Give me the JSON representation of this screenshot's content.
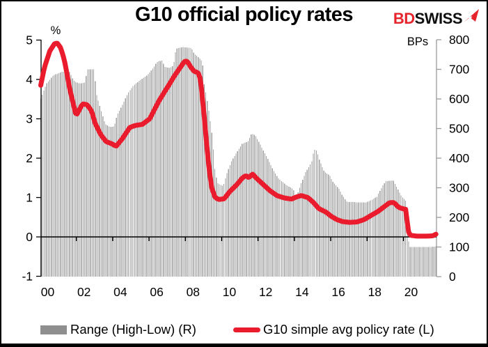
{
  "header": {
    "title": "G10 official policy rates",
    "logo": {
      "bd": "BD",
      "swiss": "SWISS",
      "bd_color": "#e5242b",
      "swiss_color": "#0f0f0f",
      "arrow_color": "#e5242b"
    }
  },
  "legend": {
    "items": [
      {
        "label": "Range (High-Low) (R)",
        "swatch": "bar",
        "color": "#8f8f8f"
      },
      {
        "label": "G10 simple avg policy rate (L)",
        "swatch": "line",
        "color": "#ea1b2c"
      }
    ]
  },
  "chart_data": {
    "type": "combo",
    "title": "G10 official policy rates",
    "x_axis": {
      "start": 2000.0,
      "end": 2021.79,
      "monthly_points": 262,
      "tick_labels": [
        "00",
        "02",
        "04",
        "06",
        "08",
        "10",
        "12",
        "14",
        "16",
        "18",
        "20"
      ],
      "tick_years": [
        2000,
        2002,
        2004,
        2006,
        2008,
        2010,
        2012,
        2014,
        2016,
        2018,
        2020
      ]
    },
    "left_axis": {
      "label": "%",
      "min": -1,
      "max": 5,
      "ticks": [
        5,
        4,
        3,
        2,
        1,
        0,
        -1
      ]
    },
    "right_axis": {
      "label": "BPs",
      "min": 0,
      "max": 800,
      "ticks": [
        800,
        700,
        600,
        500,
        400,
        300,
        200,
        100,
        0
      ]
    },
    "series": [
      {
        "name": "Range (High-Low) (R)",
        "type": "bar",
        "axis": "right",
        "unit": "BPs",
        "color": "#9f9f9f",
        "keypoints": [
          [
            2000.0,
            600
          ],
          [
            2000.3,
            650
          ],
          [
            2000.7,
            680
          ],
          [
            2001.2,
            692
          ],
          [
            2001.6,
            690
          ],
          [
            2001.8,
            662
          ],
          [
            2002.1,
            652
          ],
          [
            2002.45,
            655
          ],
          [
            2002.55,
            700
          ],
          [
            2002.95,
            700
          ],
          [
            2003.05,
            620
          ],
          [
            2003.3,
            565
          ],
          [
            2003.55,
            515
          ],
          [
            2003.8,
            505
          ],
          [
            2004.05,
            508
          ],
          [
            2004.2,
            545
          ],
          [
            2004.5,
            580
          ],
          [
            2004.8,
            620
          ],
          [
            2005.1,
            645
          ],
          [
            2005.5,
            665
          ],
          [
            2005.9,
            682
          ],
          [
            2006.2,
            705
          ],
          [
            2006.4,
            725
          ],
          [
            2006.7,
            730
          ],
          [
            2006.8,
            708
          ],
          [
            2007.1,
            705
          ],
          [
            2007.3,
            712
          ],
          [
            2007.45,
            770
          ],
          [
            2007.8,
            775
          ],
          [
            2008.3,
            772
          ],
          [
            2008.45,
            752
          ],
          [
            2008.7,
            740
          ],
          [
            2008.9,
            725
          ],
          [
            2009.0,
            650
          ],
          [
            2009.15,
            600
          ],
          [
            2009.3,
            540
          ],
          [
            2009.45,
            470
          ],
          [
            2009.6,
            350
          ],
          [
            2009.75,
            315
          ],
          [
            2010.05,
            305
          ],
          [
            2010.25,
            350
          ],
          [
            2010.5,
            390
          ],
          [
            2010.8,
            420
          ],
          [
            2011.1,
            450
          ],
          [
            2011.4,
            455
          ],
          [
            2011.6,
            482
          ],
          [
            2011.8,
            478
          ],
          [
            2012.0,
            455
          ],
          [
            2012.2,
            432
          ],
          [
            2012.5,
            398
          ],
          [
            2012.8,
            360
          ],
          [
            2013.1,
            330
          ],
          [
            2013.5,
            310
          ],
          [
            2013.9,
            295
          ],
          [
            2014.05,
            262
          ],
          [
            2014.3,
            310
          ],
          [
            2014.6,
            355
          ],
          [
            2014.9,
            385
          ],
          [
            2015.05,
            430
          ],
          [
            2015.2,
            424
          ],
          [
            2015.35,
            392
          ],
          [
            2015.6,
            355
          ],
          [
            2015.9,
            342
          ],
          [
            2016.1,
            318
          ],
          [
            2016.4,
            298
          ],
          [
            2016.6,
            275
          ],
          [
            2016.85,
            252
          ],
          [
            2017.9,
            250
          ],
          [
            2018.2,
            258
          ],
          [
            2018.5,
            270
          ],
          [
            2018.8,
            305
          ],
          [
            2019.0,
            322
          ],
          [
            2019.4,
            325
          ],
          [
            2019.6,
            302
          ],
          [
            2019.85,
            272
          ],
          [
            2020.1,
            255
          ],
          [
            2020.2,
            150
          ],
          [
            2020.28,
            100
          ],
          [
            2021.5,
            100
          ],
          [
            2021.79,
            103
          ]
        ]
      },
      {
        "name": "G10 simple avg policy rate (L)",
        "type": "line",
        "axis": "left",
        "unit": "%",
        "color": "#ea1b2c",
        "keypoints": [
          [
            2000.0,
            3.85
          ],
          [
            2000.2,
            4.3
          ],
          [
            2000.5,
            4.72
          ],
          [
            2000.75,
            4.9
          ],
          [
            2000.9,
            4.93
          ],
          [
            2001.1,
            4.8
          ],
          [
            2001.3,
            4.5
          ],
          [
            2001.6,
            3.75
          ],
          [
            2001.95,
            3.08
          ],
          [
            2002.3,
            3.38
          ],
          [
            2002.55,
            3.36
          ],
          [
            2002.8,
            3.2
          ],
          [
            2003.0,
            2.88
          ],
          [
            2003.3,
            2.6
          ],
          [
            2003.6,
            2.42
          ],
          [
            2003.9,
            2.37
          ],
          [
            2004.15,
            2.3
          ],
          [
            2004.5,
            2.5
          ],
          [
            2004.9,
            2.78
          ],
          [
            2005.2,
            2.83
          ],
          [
            2005.6,
            2.86
          ],
          [
            2006.0,
            3.0
          ],
          [
            2006.5,
            3.45
          ],
          [
            2007.0,
            3.82
          ],
          [
            2007.4,
            4.12
          ],
          [
            2007.9,
            4.45
          ],
          [
            2008.05,
            4.47
          ],
          [
            2008.25,
            4.32
          ],
          [
            2008.45,
            4.2
          ],
          [
            2008.65,
            4.18
          ],
          [
            2008.8,
            4.0
          ],
          [
            2009.0,
            3.05
          ],
          [
            2009.2,
            2.0
          ],
          [
            2009.4,
            1.26
          ],
          [
            2009.6,
            1.0
          ],
          [
            2009.8,
            0.95
          ],
          [
            2010.1,
            0.97
          ],
          [
            2010.4,
            1.15
          ],
          [
            2010.8,
            1.33
          ],
          [
            2011.1,
            1.5
          ],
          [
            2011.3,
            1.56
          ],
          [
            2011.45,
            1.5
          ],
          [
            2011.65,
            1.6
          ],
          [
            2011.9,
            1.48
          ],
          [
            2012.2,
            1.35
          ],
          [
            2012.6,
            1.18
          ],
          [
            2013.0,
            1.05
          ],
          [
            2013.4,
            0.99
          ],
          [
            2013.8,
            0.96
          ],
          [
            2014.1,
            1.02
          ],
          [
            2014.35,
            1.05
          ],
          [
            2014.7,
            1.0
          ],
          [
            2015.0,
            0.88
          ],
          [
            2015.3,
            0.72
          ],
          [
            2015.7,
            0.63
          ],
          [
            2016.0,
            0.52
          ],
          [
            2016.3,
            0.44
          ],
          [
            2016.6,
            0.39
          ],
          [
            2017.0,
            0.37
          ],
          [
            2017.4,
            0.38
          ],
          [
            2017.8,
            0.44
          ],
          [
            2018.2,
            0.55
          ],
          [
            2018.6,
            0.66
          ],
          [
            2019.0,
            0.8
          ],
          [
            2019.2,
            0.87
          ],
          [
            2019.45,
            0.87
          ],
          [
            2019.7,
            0.75
          ],
          [
            2019.9,
            0.72
          ],
          [
            2020.1,
            0.7
          ],
          [
            2020.22,
            0.15
          ],
          [
            2020.35,
            0.04
          ],
          [
            2020.7,
            0.02
          ],
          [
            2021.3,
            0.02
          ],
          [
            2021.6,
            0.03
          ],
          [
            2021.79,
            0.08
          ]
        ]
      }
    ]
  }
}
